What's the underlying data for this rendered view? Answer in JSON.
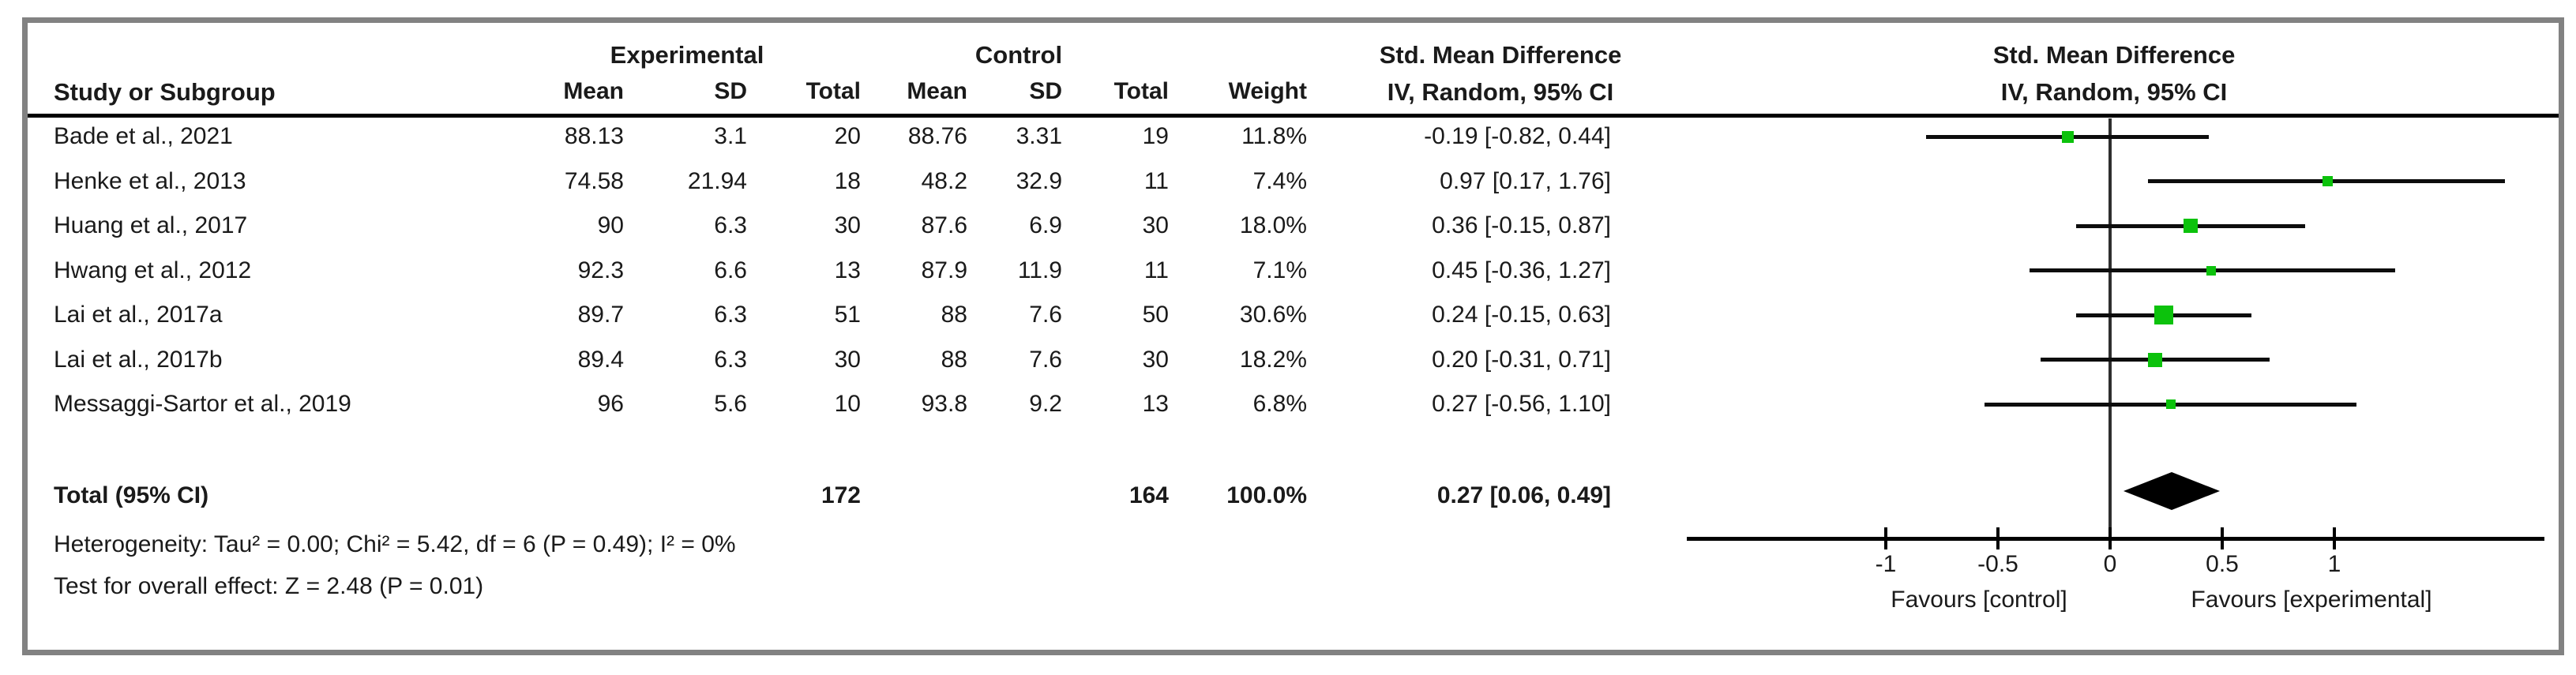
{
  "table": {
    "group_headers": {
      "experimental": "Experimental",
      "control": "Control"
    },
    "column_headers": {
      "study": "Study or Subgroup",
      "mean": "Mean",
      "sd": "SD",
      "total": "Total",
      "weight": "Weight",
      "smd_line1": "Std. Mean Difference",
      "smd_line2": "IV, Random, 95% CI"
    },
    "plot_headers": {
      "line1": "Std. Mean Difference",
      "line2": "IV, Random, 95% CI"
    },
    "rows": [
      {
        "study": "Bade et al., 2021",
        "e_mean": "88.13",
        "e_sd": "3.1",
        "e_total": "20",
        "c_mean": "88.76",
        "c_sd": "3.31",
        "c_total": "19",
        "weight": "11.8%",
        "ci": "-0.19 [-0.82, 0.44]"
      },
      {
        "study": "Henke et al., 2013",
        "e_mean": "74.58",
        "e_sd": "21.94",
        "e_total": "18",
        "c_mean": "48.2",
        "c_sd": "32.9",
        "c_total": "11",
        "weight": "7.4%",
        "ci": "0.97 [0.17, 1.76]"
      },
      {
        "study": "Huang et al., 2017",
        "e_mean": "90",
        "e_sd": "6.3",
        "e_total": "30",
        "c_mean": "87.6",
        "c_sd": "6.9",
        "c_total": "30",
        "weight": "18.0%",
        "ci": "0.36 [-0.15, 0.87]"
      },
      {
        "study": "Hwang et al., 2012",
        "e_mean": "92.3",
        "e_sd": "6.6",
        "e_total": "13",
        "c_mean": "87.9",
        "c_sd": "11.9",
        "c_total": "11",
        "weight": "7.1%",
        "ci": "0.45 [-0.36, 1.27]"
      },
      {
        "study": "Lai et al., 2017a",
        "e_mean": "89.7",
        "e_sd": "6.3",
        "e_total": "51",
        "c_mean": "88",
        "c_sd": "7.6",
        "c_total": "50",
        "weight": "30.6%",
        "ci": "0.24 [-0.15, 0.63]"
      },
      {
        "study": "Lai et al., 2017b",
        "e_mean": "89.4",
        "e_sd": "6.3",
        "e_total": "30",
        "c_mean": "88",
        "c_sd": "7.6",
        "c_total": "30",
        "weight": "18.2%",
        "ci": "0.20 [-0.31, 0.71]"
      },
      {
        "study": "Messaggi-Sartor et al., 2019",
        "e_mean": "96",
        "e_sd": "5.6",
        "e_total": "10",
        "c_mean": "93.8",
        "c_sd": "9.2",
        "c_total": "13",
        "weight": "6.8%",
        "ci": "0.27 [-0.56, 1.10]"
      }
    ],
    "total_row": {
      "label": "Total (95% CI)",
      "e_total": "172",
      "c_total": "164",
      "weight": "100.0%",
      "ci": "0.27 [0.06, 0.49]"
    },
    "heterogeneity": "Heterogeneity: Tau² = 0.00; Chi² = 5.42, df = 6 (P = 0.49); I² = 0%",
    "overall_effect": "Test for overall effect: Z = 2.48 (P = 0.01)"
  },
  "chart_data": {
    "type": "forest",
    "effect_measure": "Std. Mean Difference (IV, Random, 95% CI)",
    "studies": [
      {
        "name": "Bade et al., 2021",
        "smd": -0.19,
        "lo": -0.82,
        "hi": 0.44,
        "weight": 11.8
      },
      {
        "name": "Henke et al., 2013",
        "smd": 0.97,
        "lo": 0.17,
        "hi": 1.76,
        "weight": 7.4
      },
      {
        "name": "Huang et al., 2017",
        "smd": 0.36,
        "lo": -0.15,
        "hi": 0.87,
        "weight": 18.0
      },
      {
        "name": "Hwang et al., 2012",
        "smd": 0.45,
        "lo": -0.36,
        "hi": 1.27,
        "weight": 7.1
      },
      {
        "name": "Lai et al., 2017a",
        "smd": 0.24,
        "lo": -0.15,
        "hi": 0.63,
        "weight": 30.6
      },
      {
        "name": "Lai et al., 2017b",
        "smd": 0.2,
        "lo": -0.31,
        "hi": 0.71,
        "weight": 18.2
      },
      {
        "name": "Messaggi-Sartor et al., 2019",
        "smd": 0.27,
        "lo": -0.56,
        "hi": 1.1,
        "weight": 6.8
      }
    ],
    "total": {
      "smd": 0.27,
      "lo": 0.06,
      "hi": 0.49
    },
    "x_ticks": [
      -1,
      -0.5,
      0,
      0.5,
      1
    ],
    "x_tick_labels": [
      "-1",
      "-0.5",
      "0",
      "0.5",
      "1"
    ],
    "xlim": [
      -1.89,
      1.94
    ],
    "x_axis_labels": {
      "left": "Favours [control]",
      "right": "Favours [experimental]"
    }
  },
  "colors": {
    "square_green": "#0cc20c",
    "diamond_black": "#000000",
    "line_black": "#0d0d0d",
    "zero_line": "#2e2e2e",
    "frame_gray": "#828282"
  }
}
